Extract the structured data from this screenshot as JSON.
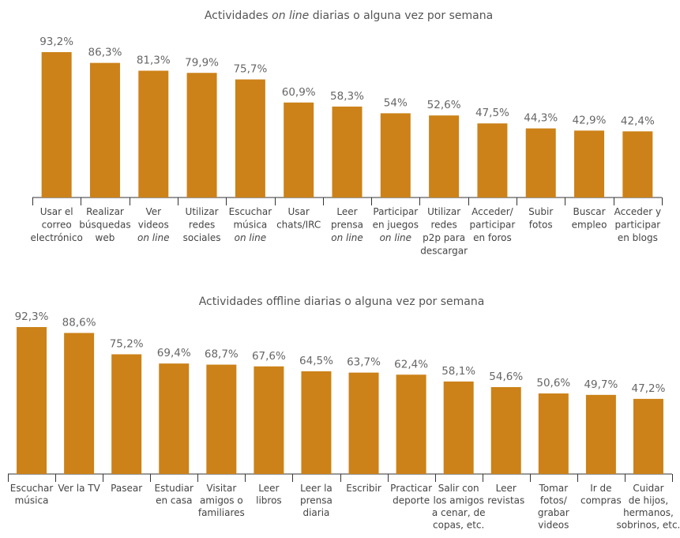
{
  "chart_data": [
    {
      "type": "bar",
      "title": "Actividades on line diarias o alguna vez por semana",
      "title_parts": [
        {
          "text": "Actividades ",
          "italic": false
        },
        {
          "text": "on line",
          "italic": true
        },
        {
          "text": " diarias o alguna vez por semana",
          "italic": false
        }
      ],
      "bar_color": "#cc8218",
      "unit": "%",
      "categories": [
        [
          {
            "t": "Usar el"
          },
          {
            "t": "correo"
          },
          {
            "t": "electrónico"
          }
        ],
        [
          {
            "t": "Realizar"
          },
          {
            "t": "búsquedas"
          },
          {
            "t": "web"
          }
        ],
        [
          {
            "t": "Ver"
          },
          {
            "t": "videos"
          },
          {
            "t": "on line",
            "i": true
          }
        ],
        [
          {
            "t": "Utilizar"
          },
          {
            "t": "redes"
          },
          {
            "t": "sociales"
          }
        ],
        [
          {
            "t": "Escuchar"
          },
          {
            "t": "música"
          },
          {
            "t": "on line",
            "i": true
          }
        ],
        [
          {
            "t": "Usar"
          },
          {
            "t": "chats/IRC"
          }
        ],
        [
          {
            "t": "Leer"
          },
          {
            "t": "prensa"
          },
          {
            "t": "on line",
            "i": true
          }
        ],
        [
          {
            "t": "Participar"
          },
          {
            "t": "en juegos"
          },
          {
            "t": "on line",
            "i": true
          }
        ],
        [
          {
            "t": "Utilizar"
          },
          {
            "t": "redes"
          },
          {
            "t": "p2p para"
          },
          {
            "t": "descargar"
          }
        ],
        [
          {
            "t": "Acceder/"
          },
          {
            "t": "participar"
          },
          {
            "t": "en foros"
          }
        ],
        [
          {
            "t": "Subir"
          },
          {
            "t": "fotos"
          }
        ],
        [
          {
            "t": "Buscar"
          },
          {
            "t": "empleo"
          }
        ],
        [
          {
            "t": "Acceder y"
          },
          {
            "t": "participar"
          },
          {
            "t": "en blogs"
          }
        ]
      ],
      "values": [
        93.2,
        86.3,
        81.3,
        79.9,
        75.7,
        60.9,
        58.3,
        54,
        52.6,
        47.5,
        44.3,
        42.9,
        42.4
      ],
      "value_labels": [
        "93,2%",
        "86,3%",
        "81,3%",
        "79,9%",
        "75,7%",
        "60,9%",
        "58,3%",
        "54%",
        "52,6%",
        "47,5%",
        "44,3%",
        "42,9%",
        "42,4%"
      ],
      "ylim": [
        0,
        100
      ],
      "grid": false,
      "legend": "none"
    },
    {
      "type": "bar",
      "title": "Actividades offline diarias o alguna vez por semana",
      "title_parts": [
        {
          "text": "Actividades offline diarias o alguna vez por semana",
          "italic": false
        }
      ],
      "bar_color": "#cc8218",
      "unit": "%",
      "categories": [
        [
          {
            "t": "Escuchar"
          },
          {
            "t": "música"
          }
        ],
        [
          {
            "t": "Ver la TV"
          }
        ],
        [
          {
            "t": "Pasear"
          }
        ],
        [
          {
            "t": "Estudiar"
          },
          {
            "t": "en casa"
          }
        ],
        [
          {
            "t": "Visitar"
          },
          {
            "t": "amigos o"
          },
          {
            "t": "familiares"
          }
        ],
        [
          {
            "t": "Leer"
          },
          {
            "t": "libros"
          }
        ],
        [
          {
            "t": "Leer la"
          },
          {
            "t": "prensa"
          },
          {
            "t": "diaria"
          }
        ],
        [
          {
            "t": "Escribir"
          }
        ],
        [
          {
            "t": "Practicar"
          },
          {
            "t": "deporte"
          }
        ],
        [
          {
            "t": "Salir con"
          },
          {
            "t": "los amigos"
          },
          {
            "t": "a cenar, de"
          },
          {
            "t": "copas, etc."
          }
        ],
        [
          {
            "t": "Leer"
          },
          {
            "t": "revistas"
          }
        ],
        [
          {
            "t": "Tomar"
          },
          {
            "t": "fotos/"
          },
          {
            "t": "grabar"
          },
          {
            "t": "videos"
          }
        ],
        [
          {
            "t": "Ir de"
          },
          {
            "t": "compras"
          }
        ],
        [
          {
            "t": "Cuidar"
          },
          {
            "t": "de hijos,"
          },
          {
            "t": "hermanos,"
          },
          {
            "t": "sobrinos, etc."
          }
        ]
      ],
      "values": [
        92.3,
        88.6,
        75.2,
        69.4,
        68.7,
        67.6,
        64.5,
        63.7,
        62.4,
        58.1,
        54.6,
        50.6,
        49.7,
        47.2
      ],
      "value_labels": [
        "92,3%",
        "88,6%",
        "75,2%",
        "69,4%",
        "68,7%",
        "67,6%",
        "64,5%",
        "63,7%",
        "62,4%",
        "58,1%",
        "54,6%",
        "50,6%",
        "49,7%",
        "47,2%"
      ],
      "ylim": [
        0,
        100
      ],
      "grid": false,
      "legend": "none"
    }
  ]
}
